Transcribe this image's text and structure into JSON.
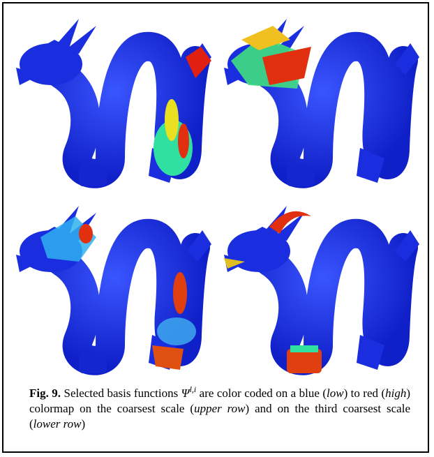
{
  "figure": {
    "caption": {
      "label": "Fig. 9.",
      "segments": [
        "Selected basis functions ",
        "Ψ",
        "l,i",
        " are color coded on a blue (",
        "low",
        ") to red (",
        "high",
        ") colormap on the coarsest scale (",
        "upper row",
        ") and on the third coarsest scale (",
        "lower row",
        ")"
      ]
    }
  }
}
